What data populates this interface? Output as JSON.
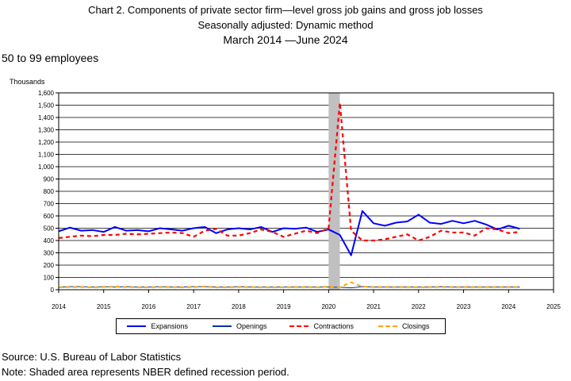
{
  "title": {
    "line1": "Chart 2. Components of private sector firm—level gross job gains and gross job losses",
    "line2": "Seasonally adjusted: Dynamic method",
    "line3": "March 2014  —June 2024"
  },
  "subtitle": "50 to 99 employees",
  "source": "Source: U.S. Bureau of Labor Statistics",
  "note": "Note: Shaded area represents NBER defined recession period.",
  "chart_data": {
    "type": "line",
    "ylabel": "Thousands",
    "ylim": [
      0,
      1600
    ],
    "xlim": [
      2014,
      2025
    ],
    "y_ticks": [
      "0",
      "100",
      "200",
      "300",
      "400",
      "500",
      "600",
      "700",
      "800",
      "900",
      "1,000",
      "1,100",
      "1,200",
      "1,300",
      "1,400",
      "1,500",
      "1,600"
    ],
    "x_ticks": [
      "2014",
      "2015",
      "2016",
      "2017",
      "2018",
      "2019",
      "2020",
      "2021",
      "2022",
      "2023",
      "2024",
      "2025"
    ],
    "grid": "horizontal",
    "legend_position": "bottom",
    "recession": [
      2020.0,
      2020.25
    ],
    "x": [
      2014.0,
      2014.25,
      2014.5,
      2014.75,
      2015.0,
      2015.25,
      2015.5,
      2015.75,
      2016.0,
      2016.25,
      2016.5,
      2016.75,
      2017.0,
      2017.25,
      2017.5,
      2017.75,
      2018.0,
      2018.25,
      2018.5,
      2018.75,
      2019.0,
      2019.25,
      2019.5,
      2019.75,
      2020.0,
      2020.25,
      2020.5,
      2020.75,
      2021.0,
      2021.25,
      2021.5,
      2021.75,
      2022.0,
      2022.25,
      2022.5,
      2022.75,
      2023.0,
      2023.25,
      2023.5,
      2023.75,
      2024.0,
      2024.25
    ],
    "series": [
      {
        "name": "Expansions",
        "color": "#0000ff",
        "dash": "solid",
        "width": 2,
        "values": [
          475,
          505,
          480,
          485,
          470,
          510,
          480,
          485,
          475,
          500,
          490,
          480,
          500,
          510,
          460,
          490,
          500,
          490,
          510,
          470,
          500,
          495,
          505,
          470,
          490,
          445,
          280,
          640,
          540,
          520,
          545,
          555,
          610,
          545,
          535,
          560,
          540,
          560,
          530,
          490,
          520,
          495
        ]
      },
      {
        "name": "Openings",
        "color": "#003399",
        "dash": "solid",
        "width": 1,
        "values": [
          20,
          25,
          25,
          22,
          25,
          22,
          25,
          22,
          22,
          25,
          22,
          22,
          25,
          25,
          22,
          22,
          25,
          22,
          22,
          22,
          22,
          22,
          22,
          22,
          22,
          20,
          15,
          25,
          22,
          22,
          22,
          22,
          22,
          22,
          25,
          22,
          22,
          22,
          22,
          22,
          22,
          22
        ]
      },
      {
        "name": "Contractions",
        "color": "#ff0000",
        "dash": "5,4",
        "width": 2.2,
        "values": [
          420,
          430,
          440,
          435,
          445,
          445,
          455,
          450,
          455,
          460,
          465,
          460,
          430,
          480,
          495,
          440,
          440,
          460,
          490,
          470,
          430,
          455,
          480,
          460,
          500,
          1520,
          480,
          400,
          400,
          410,
          430,
          450,
          400,
          430,
          480,
          465,
          465,
          440,
          500,
          490,
          460,
          470
        ]
      },
      {
        "name": "Closings",
        "color": "#ffa500",
        "dash": "5,4",
        "width": 2,
        "values": [
          20,
          22,
          22,
          20,
          22,
          25,
          22,
          20,
          20,
          22,
          22,
          20,
          22,
          25,
          20,
          20,
          22,
          22,
          20,
          20,
          20,
          22,
          22,
          20,
          25,
          20,
          60,
          25,
          22,
          22,
          22,
          22,
          20,
          22,
          22,
          22,
          22,
          22,
          22,
          22,
          22,
          22
        ]
      }
    ]
  }
}
